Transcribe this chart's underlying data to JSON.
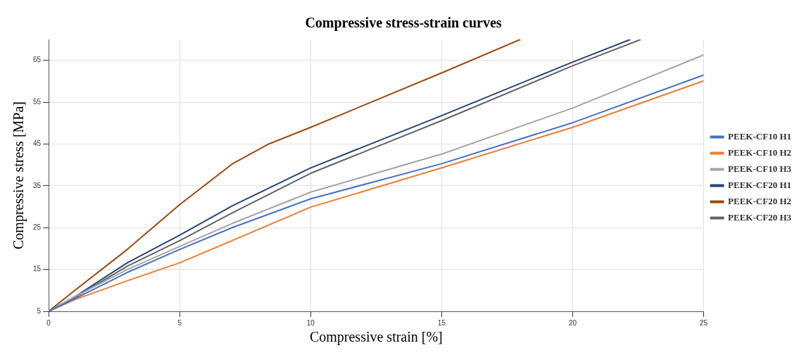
{
  "chart_data": {
    "type": "line",
    "title": "Compressive stress-strain curves",
    "xlabel": "Compressive strain [%]",
    "ylabel": "Compressive stress [MPa]",
    "xlim": [
      0,
      25
    ],
    "xticks": [
      0,
      5,
      10,
      15,
      20,
      25
    ],
    "ylim": [
      5,
      70
    ],
    "yticks": [
      5,
      15,
      25,
      35,
      45,
      55,
      65
    ],
    "grid": true,
    "legend": "right",
    "marker": "none",
    "line_style": "solid",
    "series": [
      {
        "name": "PEEK-CF10 H1",
        "color": "#4472c4",
        "x": [
          0,
          1,
          3,
          5,
          7,
          10,
          15,
          20,
          25
        ],
        "values": [
          5,
          8,
          14.3,
          19.8,
          25,
          31.9,
          40.3,
          50.1,
          61.5
        ]
      },
      {
        "name": "PEEK-CF10 H2",
        "color": "#ed7d31",
        "x": [
          0,
          1,
          3,
          5,
          7,
          10,
          15,
          20,
          25
        ],
        "values": [
          5,
          7.8,
          12.3,
          16.6,
          21.9,
          29.9,
          39.3,
          49,
          60.1
        ]
      },
      {
        "name": "PEEK-CF10 H3",
        "color": "#a5a5a5",
        "x": [
          0,
          1,
          3,
          5,
          7,
          10,
          15,
          20,
          25
        ],
        "values": [
          5,
          8.5,
          15,
          20.5,
          26,
          33.5,
          42.6,
          53.6,
          66.3
        ]
      },
      {
        "name": "PEEK-CF20 H1",
        "color": "#264478",
        "x": [
          0,
          1,
          3,
          5,
          7,
          10,
          15,
          20,
          22.2
        ],
        "values": [
          5,
          8.5,
          16.6,
          23.2,
          30.2,
          39.3,
          51.8,
          64.6,
          70
        ]
      },
      {
        "name": "PEEK-CF20 H2",
        "color": "#9e480e",
        "x": [
          0,
          1,
          3,
          5,
          7,
          8.4,
          10,
          15,
          18
        ],
        "values": [
          5,
          10,
          19.8,
          30.5,
          40.2,
          45,
          49,
          62,
          70
        ]
      },
      {
        "name": "PEEK-CF20 H3",
        "color": "#636363",
        "x": [
          0,
          1,
          3,
          5,
          7,
          10,
          15,
          20,
          22.6
        ],
        "values": [
          5,
          8.3,
          15.8,
          21.9,
          28.5,
          38,
          50.6,
          63.7,
          70
        ]
      }
    ]
  }
}
